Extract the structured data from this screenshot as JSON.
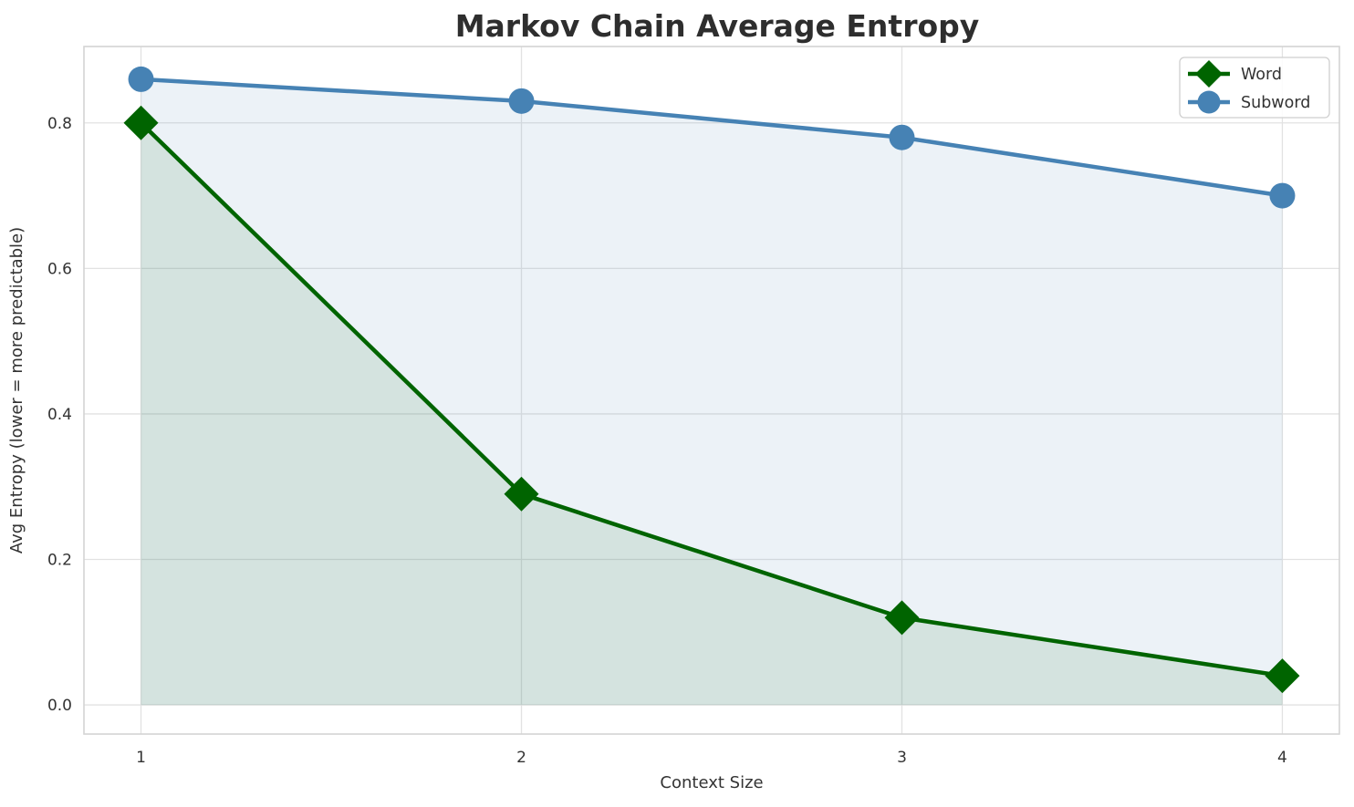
{
  "chart_data": {
    "type": "line",
    "title": "Markov Chain Average Entropy",
    "xlabel": "Context Size",
    "ylabel": "Avg Entropy (lower = more predictable)",
    "x": [
      1,
      2,
      3,
      4
    ],
    "series": [
      {
        "name": "Word",
        "marker": "diamond",
        "color": "#006400",
        "fill_alpha": 0.1,
        "values": [
          0.8,
          0.29,
          0.12,
          0.04
        ]
      },
      {
        "name": "Subword",
        "marker": "circle",
        "color": "#4682b4",
        "fill_alpha": 0.1,
        "values": [
          0.86,
          0.83,
          0.78,
          0.7
        ]
      }
    ],
    "fill_to_zero": true,
    "xticks": [
      "1",
      "2",
      "3",
      "4"
    ],
    "xtick_values": [
      1,
      2,
      3,
      4
    ],
    "yticks": [
      "0.0",
      "0.2",
      "0.4",
      "0.6",
      "0.8"
    ],
    "ytick_values": [
      0.0,
      0.2,
      0.4,
      0.6,
      0.8
    ],
    "xlim": [
      0.85,
      4.15
    ],
    "ylim": [
      -0.04,
      0.905
    ],
    "grid": true,
    "legend_position": "upper right",
    "colors": {
      "word_green": "#006400",
      "subword_blue": "#4682b4",
      "grid": "#e2e2e2",
      "border": "#d4d4d4",
      "text": "#333333",
      "title_text": "#2e2e2e",
      "legend_border": "#cfcfcf"
    }
  }
}
